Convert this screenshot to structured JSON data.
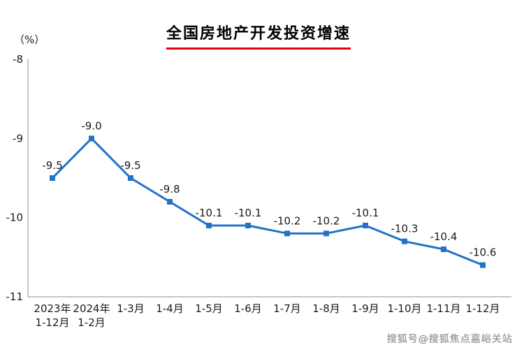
{
  "page": {
    "title": "全国房地产开发投资增速",
    "unit_label": "（%）",
    "watermark": "搜狐号@搜狐焦点嘉峪关站"
  },
  "colors": {
    "line": "#2272C8",
    "title_underline": "#E60012",
    "watermark_text": "#8a8a8a",
    "axis": "#8c8c8c",
    "text": "#1a1a1a"
  },
  "chart_data": {
    "type": "line",
    "title": "全国房地产开发投资增速",
    "ylabel": "（%）",
    "categories": [
      "2023年\n1-12月",
      "2024年\n1-2月",
      "1-3月",
      "1-4月",
      "1-5月",
      "1-6月",
      "1-7月",
      "1-8月",
      "1-9月",
      "1-10月",
      "1-11月",
      "1-12月"
    ],
    "values": [
      -9.5,
      -9.0,
      -9.5,
      -9.8,
      -10.1,
      -10.1,
      -10.2,
      -10.2,
      -10.1,
      -10.3,
      -10.4,
      -10.6
    ],
    "data_labels": [
      "-9.5",
      "-9.0",
      "-9.5",
      "-9.8",
      "-10.1",
      "-10.1",
      "-10.2",
      "-10.2",
      "-10.1",
      "-10.3",
      "-10.4",
      "-10.6"
    ],
    "ylim": [
      -11,
      -8
    ],
    "yticks": [
      -8,
      -9,
      -10,
      -11
    ],
    "grid": false,
    "legend": "none",
    "marker": "square",
    "line_width": 3
  }
}
